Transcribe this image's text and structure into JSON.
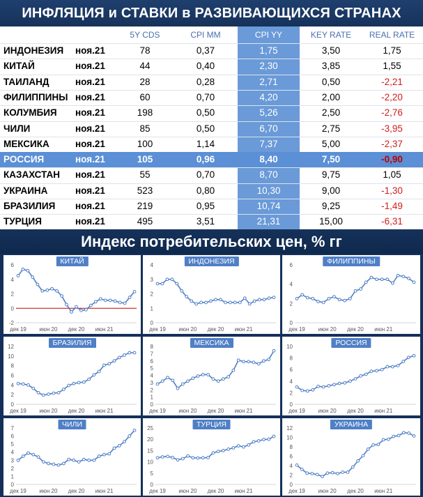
{
  "header": {
    "title": "ИНФЛЯЦИЯ и СТАВКИ в РАЗВИВАЮЩИХСЯ СТРАНАХ"
  },
  "table": {
    "columns": [
      "",
      "",
      "5Y CDS",
      "CPI MM",
      "CPI YY",
      "KEY RATE",
      "REAL RATE"
    ],
    "rows": [
      {
        "country": "ИНДОНЕЗИЯ",
        "date": "ноя.21",
        "cds": "78",
        "cpi_mm": "0,37",
        "cpi_yy": "1,75",
        "key_rate": "3,50",
        "real_rate": "1,75",
        "negative": false,
        "highlight": false
      },
      {
        "country": "КИТАЙ",
        "date": "ноя.21",
        "cds": "44",
        "cpi_mm": "0,40",
        "cpi_yy": "2,30",
        "key_rate": "3,85",
        "real_rate": "1,55",
        "negative": false,
        "highlight": false
      },
      {
        "country": "ТАИЛАНД",
        "date": "ноя.21",
        "cds": "28",
        "cpi_mm": "0,28",
        "cpi_yy": "2,71",
        "key_rate": "0,50",
        "real_rate": "-2,21",
        "negative": true,
        "highlight": false
      },
      {
        "country": "ФИЛИППИНЫ",
        "date": "ноя.21",
        "cds": "60",
        "cpi_mm": "0,70",
        "cpi_yy": "4,20",
        "key_rate": "2,00",
        "real_rate": "-2,20",
        "negative": true,
        "highlight": false
      },
      {
        "country": "КОЛУМБИЯ",
        "date": "ноя.21",
        "cds": "198",
        "cpi_mm": "0,50",
        "cpi_yy": "5,26",
        "key_rate": "2,50",
        "real_rate": "-2,76",
        "negative": true,
        "highlight": false
      },
      {
        "country": "ЧИЛИ",
        "date": "ноя.21",
        "cds": "85",
        "cpi_mm": "0,50",
        "cpi_yy": "6,70",
        "key_rate": "2,75",
        "real_rate": "-3,95",
        "negative": true,
        "highlight": false
      },
      {
        "country": "МЕКСИКА",
        "date": "ноя.21",
        "cds": "100",
        "cpi_mm": "1,14",
        "cpi_yy": "7,37",
        "key_rate": "5,00",
        "real_rate": "-2,37",
        "negative": true,
        "highlight": false
      },
      {
        "country": "РОССИЯ",
        "date": "ноя.21",
        "cds": "105",
        "cpi_mm": "0,96",
        "cpi_yy": "8,40",
        "key_rate": "7,50",
        "real_rate": "-0,90",
        "negative": true,
        "highlight": true
      },
      {
        "country": "КАЗАХСТАН",
        "date": "ноя.21",
        "cds": "55",
        "cpi_mm": "0,70",
        "cpi_yy": "8,70",
        "key_rate": "9,75",
        "real_rate": "1,05",
        "negative": false,
        "highlight": false
      },
      {
        "country": "УКРАИНА",
        "date": "ноя.21",
        "cds": "523",
        "cpi_mm": "0,80",
        "cpi_yy": "10,30",
        "key_rate": "9,00",
        "real_rate": "-1,30",
        "negative": true,
        "highlight": false
      },
      {
        "country": "БРАЗИЛИЯ",
        "date": "ноя.21",
        "cds": "219",
        "cpi_mm": "0,95",
        "cpi_yy": "10,74",
        "key_rate": "9,25",
        "real_rate": "-1,49",
        "negative": true,
        "highlight": false
      },
      {
        "country": "ТУРЦИЯ",
        "date": "ноя.21",
        "cds": "495",
        "cpi_mm": "3,51",
        "cpi_yy": "21,31",
        "key_rate": "15,00",
        "real_rate": "-6,31",
        "negative": true,
        "highlight": false
      }
    ]
  },
  "subheader": {
    "title": "Индекс потребительских цен, % гг"
  },
  "colors": {
    "line": "#4f7fc6",
    "zero_line": "#c00000",
    "title_bar": "#16325a",
    "cpi_band": "#6a9ad8",
    "negative": "#d01c1c"
  },
  "chart_data": [
    {
      "type": "line",
      "title": "КИТАЙ",
      "x_ticks": [
        "дек 19",
        "июн 20",
        "дек 20",
        "июн 21"
      ],
      "ylim": [
        -2,
        6
      ],
      "y_ticks": [
        -2,
        0,
        2,
        4,
        6
      ],
      "zero_line": true,
      "values": [
        4.5,
        5.4,
        5.2,
        4.3,
        3.3,
        2.4,
        2.5,
        2.7,
        2.4,
        1.7,
        0.5,
        -0.5,
        0.2,
        -0.3,
        -0.2,
        0.4,
        0.9,
        1.3,
        1.1,
        1.1,
        1.0,
        0.8,
        0.7,
        1.5,
        2.3
      ]
    },
    {
      "type": "line",
      "title": "ИНДОНЕЗИЯ",
      "x_ticks": [
        "дек 19",
        "июн 20",
        "дек 20",
        "июн 21"
      ],
      "ylim": [
        0,
        4
      ],
      "y_ticks": [
        0,
        1,
        2,
        3,
        4
      ],
      "values": [
        2.7,
        2.7,
        3.0,
        3.0,
        2.7,
        2.2,
        1.8,
        1.5,
        1.3,
        1.4,
        1.4,
        1.5,
        1.6,
        1.6,
        1.4,
        1.4,
        1.4,
        1.4,
        1.7,
        1.3,
        1.5,
        1.6,
        1.6,
        1.7,
        1.75
      ]
    },
    {
      "type": "line",
      "title": "ФИЛИППИНЫ",
      "x_ticks": [
        "дек 19",
        "июн 20",
        "дек 20",
        "июн 21"
      ],
      "ylim": [
        0,
        6
      ],
      "y_ticks": [
        0,
        2,
        4,
        6
      ],
      "values": [
        2.5,
        2.9,
        2.6,
        2.5,
        2.2,
        2.1,
        2.5,
        2.7,
        2.4,
        2.3,
        2.5,
        3.3,
        3.5,
        4.2,
        4.7,
        4.5,
        4.5,
        4.5,
        4.1,
        4.9,
        4.8,
        4.6,
        4.2
      ]
    },
    {
      "type": "line",
      "title": "БРАЗИЛИЯ",
      "x_ticks": [
        "дек 19",
        "июн 20",
        "дек 20",
        "июн 21"
      ],
      "ylim": [
        0,
        12
      ],
      "y_ticks": [
        0,
        2,
        4,
        6,
        8,
        10,
        12
      ],
      "values": [
        4.3,
        4.2,
        4.0,
        3.3,
        2.4,
        1.9,
        2.1,
        2.3,
        2.4,
        3.1,
        3.9,
        4.3,
        4.5,
        4.6,
        5.2,
        6.1,
        6.8,
        8.1,
        8.4,
        9.0,
        9.7,
        10.2,
        10.7,
        10.7
      ]
    },
    {
      "type": "line",
      "title": "МЕКСИКА",
      "x_ticks": [
        "дек 19",
        "июн 20",
        "дек 20",
        "июн 21"
      ],
      "ylim": [
        0,
        8
      ],
      "y_ticks": [
        0,
        1,
        2,
        3,
        4,
        5,
        6,
        7,
        8
      ],
      "values": [
        2.8,
        3.2,
        3.7,
        3.3,
        2.2,
        2.8,
        3.2,
        3.6,
        3.9,
        4.1,
        4.1,
        3.5,
        3.2,
        3.5,
        3.8,
        4.7,
        6.1,
        5.9,
        5.9,
        5.8,
        5.6,
        6.0,
        6.2,
        7.4
      ]
    },
    {
      "type": "line",
      "title": "РОССИЯ",
      "x_ticks": [
        "дек 19",
        "июн 20",
        "дек 20",
        "июн 21"
      ],
      "ylim": [
        0,
        10
      ],
      "y_ticks": [
        0,
        2,
        4,
        6,
        8,
        10
      ],
      "values": [
        3.0,
        2.4,
        2.3,
        2.5,
        3.1,
        3.0,
        3.2,
        3.4,
        3.6,
        3.7,
        4.0,
        4.4,
        4.9,
        5.2,
        5.7,
        5.8,
        6.0,
        6.5,
        6.5,
        6.7,
        7.4,
        8.1,
        8.4
      ]
    },
    {
      "type": "line",
      "title": "ЧИЛИ",
      "x_ticks": [
        "дек 19",
        "июн 20",
        "дек 20",
        "июн 21"
      ],
      "ylim": [
        0,
        7
      ],
      "y_ticks": [
        0,
        1,
        2,
        3,
        4,
        5,
        6,
        7
      ],
      "values": [
        3.0,
        3.5,
        3.9,
        3.7,
        3.4,
        2.8,
        2.6,
        2.5,
        2.4,
        2.6,
        3.1,
        3.0,
        2.8,
        3.1,
        3.0,
        3.0,
        3.5,
        3.7,
        3.8,
        4.5,
        4.8,
        5.3,
        6.0,
        6.7
      ]
    },
    {
      "type": "line",
      "title": "ТУРЦИЯ",
      "x_ticks": [
        "дек 19",
        "июн 20",
        "дек 20",
        "июн 21"
      ],
      "ylim": [
        0,
        25
      ],
      "y_ticks": [
        0,
        5,
        10,
        15,
        20,
        25
      ],
      "values": [
        11.8,
        12.2,
        12.4,
        11.9,
        10.9,
        11.4,
        12.6,
        11.8,
        11.7,
        11.8,
        11.9,
        14.0,
        14.6,
        15.0,
        15.6,
        16.2,
        17.1,
        16.6,
        17.5,
        18.9,
        19.3,
        19.9,
        20.0,
        21.3
      ]
    },
    {
      "type": "line",
      "title": "УКРАИНА",
      "x_ticks": [
        "дек 19",
        "июн 20",
        "дек 20",
        "июн 21"
      ],
      "ylim": [
        0,
        12
      ],
      "y_ticks": [
        0,
        2,
        4,
        6,
        8,
        10,
        12
      ],
      "values": [
        4.1,
        3.2,
        2.4,
        2.3,
        2.1,
        1.7,
        2.4,
        2.5,
        2.3,
        2.6,
        2.6,
        3.7,
        5.0,
        6.1,
        7.5,
        8.4,
        8.5,
        9.5,
        9.6,
        10.2,
        10.4,
        11.0,
        10.9,
        10.3
      ]
    }
  ]
}
